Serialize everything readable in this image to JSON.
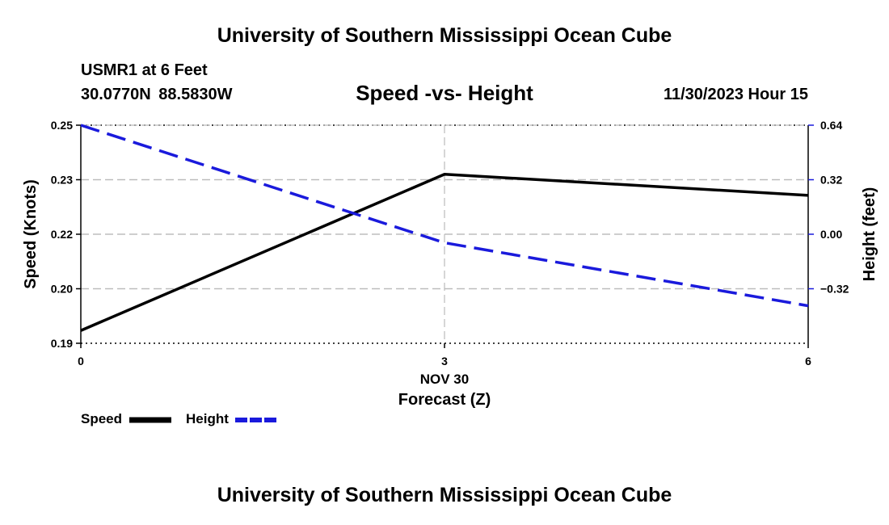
{
  "header": {
    "title": "University of Southern Mississippi Ocean Cube",
    "station": "USMR1 at 6 Feet",
    "coords": "30.0770N  88.5830W",
    "subtitle": "Speed -vs- Height",
    "datetime": "11/30/2023 Hour 15"
  },
  "footer": {
    "title": "University of Southern Mississippi Ocean Cube"
  },
  "legend": {
    "speed_label": "Speed",
    "height_label": "Height"
  },
  "colors": {
    "speed": "#000000",
    "height": "#1a1adc",
    "grid": "#bbbbbb"
  },
  "chart_data": {
    "type": "line",
    "title": "Speed -vs- Height",
    "x": [
      0,
      3,
      6
    ],
    "x_tick_labels": [
      "0",
      "3",
      "6"
    ],
    "x_sub_label": "NOV 30",
    "xlabel": "Forecast (Z)",
    "xlim": [
      0,
      6
    ],
    "y_left": {
      "label": "Speed (Knots)",
      "lim": [
        0.19,
        0.25
      ],
      "ticks": [
        0.19,
        0.205,
        0.22,
        0.235,
        0.25
      ],
      "tick_labels": [
        "0.19",
        "0.20",
        "0.22",
        "0.23",
        "0.25"
      ]
    },
    "y_right": {
      "label": "Height (feet)",
      "lim": [
        -0.64,
        0.64
      ],
      "ticks": [
        -0.32,
        0.0,
        0.32,
        0.64
      ],
      "tick_labels": [
        "−0.32",
        "0.00",
        "0.32",
        "0.64"
      ]
    },
    "grid": true,
    "series": [
      {
        "name": "Speed",
        "axis": "left",
        "style": "solid",
        "values": [
          0.1935,
          0.2365,
          0.2307
        ]
      },
      {
        "name": "Height",
        "axis": "right",
        "style": "dashed",
        "values": [
          0.64,
          -0.05,
          -0.42
        ]
      }
    ]
  }
}
